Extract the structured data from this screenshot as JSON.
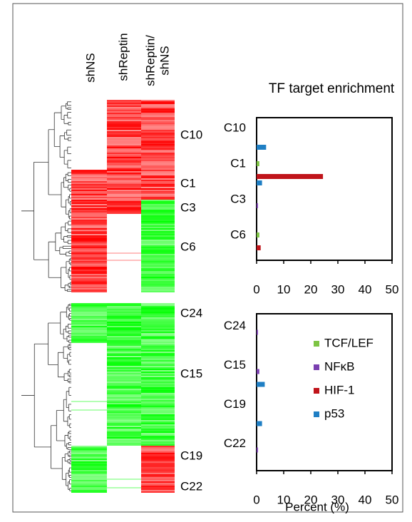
{
  "heatmap": {
    "columns": [
      "shNS",
      "shReptin"
    ],
    "ratio_column": [
      "shReptin/",
      "shNS"
    ],
    "top_clusters": [
      "C10",
      "C1",
      "C3",
      "C6"
    ],
    "bottom_clusters": [
      "C24",
      "C15",
      "C19",
      "C22"
    ]
  },
  "chart_data": [
    {
      "type": "bar",
      "orientation": "horizontal",
      "title": "TF target enrichment",
      "categories": [
        "C10",
        "C1",
        "C3",
        "C6"
      ],
      "series": [
        {
          "name": "TCF/LEF",
          "color": "#7dc443",
          "values": [
            0,
            1,
            0,
            1
          ]
        },
        {
          "name": "NFκB",
          "color": "#7a3fb0",
          "values": [
            0,
            0,
            0.5,
            0
          ]
        },
        {
          "name": "HIF-1",
          "color": "#c0141a",
          "values": [
            0,
            24.5,
            0,
            1.5
          ]
        },
        {
          "name": "p53",
          "color": "#1f7fc4",
          "values": [
            3.5,
            2,
            0,
            0
          ]
        }
      ],
      "xlim": [
        0,
        50
      ],
      "xticks": [
        0,
        10,
        20,
        30,
        40,
        50
      ]
    },
    {
      "type": "bar",
      "orientation": "horizontal",
      "xlabel": "Percent  (%)",
      "categories": [
        "C24",
        "C15",
        "C19",
        "C22"
      ],
      "series": [
        {
          "name": "TCF/LEF",
          "color": "#7dc443",
          "values": [
            0,
            0,
            0,
            0
          ]
        },
        {
          "name": "NFκB",
          "color": "#7a3fb0",
          "values": [
            0.5,
            1,
            0,
            0.5
          ]
        },
        {
          "name": "HIF-1",
          "color": "#c0141a",
          "values": [
            0,
            0,
            0,
            0
          ]
        },
        {
          "name": "p53",
          "color": "#1f7fc4",
          "values": [
            0,
            3,
            2,
            0
          ]
        }
      ],
      "xlim": [
        0,
        50
      ],
      "xticks": [
        0,
        10,
        20,
        30,
        40,
        50
      ],
      "legend": "right"
    }
  ]
}
